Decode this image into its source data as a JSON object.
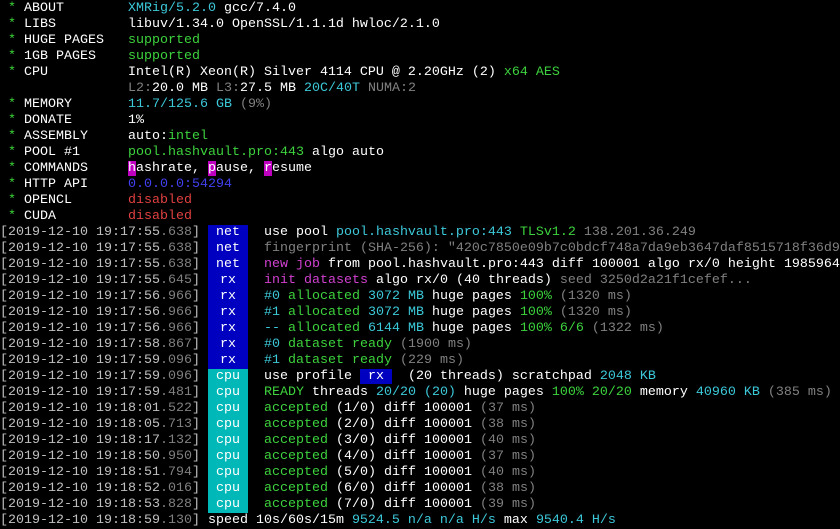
{
  "colors": {
    "tag_net": "#0000c0",
    "tag_cpu": "#00b8b8",
    "green": "#3dd23d",
    "cyan": "#3cc8d8",
    "magenta": "#d040d0",
    "red": "#e04040",
    "blue": "#4040f0",
    "grey": "#808080"
  },
  "header": [
    {
      "label": "ABOUT",
      "seg": [
        [
          "XMRig/5.2.0",
          "c"
        ],
        [
          " gcc/7.4.0",
          "W"
        ]
      ]
    },
    {
      "label": "LIBS",
      "seg": [
        [
          "libuv/1.34.0 OpenSSL/1.1.1d hwloc/2.1.0",
          "W"
        ]
      ]
    },
    {
      "label": "HUGE PAGES",
      "seg": [
        [
          "supported",
          "G"
        ]
      ]
    },
    {
      "label": "1GB PAGES",
      "seg": [
        [
          "supported",
          "G"
        ]
      ]
    },
    {
      "label": "CPU",
      "seg": [
        [
          "Intel(R) Xeon(R) Silver 4114 CPU @ 2.20GHz (2)",
          "W"
        ],
        [
          " x64 AES",
          "G"
        ]
      ]
    },
    {
      "label": "",
      "seg": [
        [
          "L2:",
          "g"
        ],
        [
          "20.0 MB ",
          "W"
        ],
        [
          "L3:",
          "g"
        ],
        [
          "27.5 MB ",
          "W"
        ],
        [
          "20C/40T ",
          "c"
        ],
        [
          "NUMA:2",
          "g"
        ]
      ]
    },
    {
      "label": "MEMORY",
      "seg": [
        [
          "11.7/125.6 GB",
          "c"
        ],
        [
          " (9%)",
          "g"
        ]
      ]
    },
    {
      "label": "DONATE",
      "seg": [
        [
          "1%",
          "W"
        ]
      ]
    },
    {
      "label": "ASSEMBLY",
      "seg": [
        [
          "auto:",
          "W"
        ],
        [
          "intel",
          "G"
        ]
      ]
    },
    {
      "label": "POOL #1",
      "seg": [
        [
          "pool.hashvault.pro:443",
          "G"
        ],
        [
          " algo auto",
          "W"
        ]
      ]
    },
    {
      "label": "COMMANDS",
      "seg": [
        [
          "h",
          "hl"
        ],
        [
          "ashrate, ",
          "W"
        ],
        [
          "p",
          "hl"
        ],
        [
          "ause, ",
          "W"
        ],
        [
          "r",
          "hl"
        ],
        [
          "esume",
          "W"
        ]
      ]
    },
    {
      "label": "HTTP API",
      "seg": [
        [
          "0.0.0.0:54294",
          "b"
        ]
      ]
    },
    {
      "label": "OPENCL",
      "seg": [
        [
          "disabled",
          "r"
        ]
      ]
    },
    {
      "label": "CUDA",
      "seg": [
        [
          "disabled",
          "r"
        ]
      ]
    }
  ],
  "log": [
    {
      "ts": "2019-12-10 19:17:55",
      "ms": ".638",
      "tag": "net",
      "seg": [
        [
          "use pool ",
          "W"
        ],
        [
          "pool.hashvault.pro:443 ",
          "c"
        ],
        [
          "TLSv1.2 ",
          "G"
        ],
        [
          "138.201.36.249",
          "g"
        ]
      ]
    },
    {
      "ts": "2019-12-10 19:17:55",
      "ms": ".638",
      "tag": "net",
      "seg": [
        [
          "fingerprint (SHA-256): \"420c7850e09b7c0bdcf748a7da9eb3647daf8515718f36d9",
          "g"
        ]
      ]
    },
    {
      "ts": "2019-12-10 19:17:55",
      "ms": ".638",
      "tag": "net",
      "seg": [
        [
          "new job",
          "m"
        ],
        [
          " from ",
          "W"
        ],
        [
          "pool.hashvault.pro:443",
          "W"
        ],
        [
          " diff ",
          "W"
        ],
        [
          "100001",
          "W"
        ],
        [
          " algo ",
          "W"
        ],
        [
          "rx/0",
          "W"
        ],
        [
          " height ",
          "W"
        ],
        [
          "1985964",
          "W"
        ]
      ]
    },
    {
      "ts": "2019-12-10 19:17:55",
      "ms": ".645",
      "tag": "rx",
      "seg": [
        [
          "init datasets",
          "m"
        ],
        [
          " algo ",
          "W"
        ],
        [
          "rx/0",
          "W"
        ],
        [
          " (40 threads)",
          "W"
        ],
        [
          " seed 3250d2a21f1cefef...",
          "g"
        ]
      ]
    },
    {
      "ts": "2019-12-10 19:17:56",
      "ms": ".966",
      "tag": "rx",
      "seg": [
        [
          "#0",
          "c"
        ],
        [
          " allocated ",
          "G"
        ],
        [
          "3072 MB",
          "c"
        ],
        [
          " huge pages ",
          "W"
        ],
        [
          "100%",
          "G"
        ],
        [
          " (1320 ms)",
          "g"
        ]
      ]
    },
    {
      "ts": "2019-12-10 19:17:56",
      "ms": ".966",
      "tag": "rx",
      "seg": [
        [
          "#1",
          "c"
        ],
        [
          " allocated ",
          "G"
        ],
        [
          "3072 MB",
          "c"
        ],
        [
          " huge pages ",
          "W"
        ],
        [
          "100%",
          "G"
        ],
        [
          " (1320 ms)",
          "g"
        ]
      ]
    },
    {
      "ts": "2019-12-10 19:17:56",
      "ms": ".966",
      "tag": "rx",
      "seg": [
        [
          "--",
          "c"
        ],
        [
          " allocated ",
          "G"
        ],
        [
          "6144 MB",
          "c"
        ],
        [
          " huge pages ",
          "W"
        ],
        [
          "100% 6/6",
          "G"
        ],
        [
          " (1322 ms)",
          "g"
        ]
      ]
    },
    {
      "ts": "2019-12-10 19:17:58",
      "ms": ".867",
      "tag": "rx",
      "seg": [
        [
          "#0",
          "c"
        ],
        [
          " dataset ready",
          "G"
        ],
        [
          " (1900 ms)",
          "g"
        ]
      ]
    },
    {
      "ts": "2019-12-10 19:17:59",
      "ms": ".096",
      "tag": "rx",
      "seg": [
        [
          "#1",
          "c"
        ],
        [
          " dataset ready",
          "G"
        ],
        [
          " (229 ms)",
          "g"
        ]
      ]
    },
    {
      "ts": "2019-12-10 19:17:59",
      "ms": ".096",
      "tag": "cpu",
      "seg": [
        [
          "use profile ",
          "W"
        ],
        [
          " rx ",
          "inv"
        ],
        [
          "  (20 threads)",
          "W"
        ],
        [
          " scratchpad ",
          "W"
        ],
        [
          "2048 KB",
          "c"
        ]
      ]
    },
    {
      "ts": "2019-12-10 19:17:59",
      "ms": ".481",
      "tag": "cpu",
      "seg": [
        [
          "READY",
          "G"
        ],
        [
          " threads ",
          "W"
        ],
        [
          "20/20 (20)",
          "c"
        ],
        [
          " huge pages ",
          "W"
        ],
        [
          "100% 20/20",
          "G"
        ],
        [
          " memory ",
          "W"
        ],
        [
          "40960 KB",
          "c"
        ],
        [
          " (385 ms)",
          "g"
        ]
      ]
    },
    {
      "ts": "2019-12-10 19:18:01",
      "ms": ".522",
      "tag": "cpu",
      "seg": [
        [
          "accepted",
          "G"
        ],
        [
          " (1/0) diff ",
          "W"
        ],
        [
          "100001",
          "W"
        ],
        [
          " (37 ms)",
          "g"
        ]
      ]
    },
    {
      "ts": "2019-12-10 19:18:05",
      "ms": ".713",
      "tag": "cpu",
      "seg": [
        [
          "accepted",
          "G"
        ],
        [
          " (2/0) diff ",
          "W"
        ],
        [
          "100001",
          "W"
        ],
        [
          " (38 ms)",
          "g"
        ]
      ]
    },
    {
      "ts": "2019-12-10 19:18:17",
      "ms": ".132",
      "tag": "cpu",
      "seg": [
        [
          "accepted",
          "G"
        ],
        [
          " (3/0) diff ",
          "W"
        ],
        [
          "100001",
          "W"
        ],
        [
          " (40 ms)",
          "g"
        ]
      ]
    },
    {
      "ts": "2019-12-10 19:18:50",
      "ms": ".950",
      "tag": "cpu",
      "seg": [
        [
          "accepted",
          "G"
        ],
        [
          " (4/0) diff ",
          "W"
        ],
        [
          "100001",
          "W"
        ],
        [
          " (37 ms)",
          "g"
        ]
      ]
    },
    {
      "ts": "2019-12-10 19:18:51",
      "ms": ".794",
      "tag": "cpu",
      "seg": [
        [
          "accepted",
          "G"
        ],
        [
          " (5/0) diff ",
          "W"
        ],
        [
          "100001",
          "W"
        ],
        [
          " (40 ms)",
          "g"
        ]
      ]
    },
    {
      "ts": "2019-12-10 19:18:52",
      "ms": ".016",
      "tag": "cpu",
      "seg": [
        [
          "accepted",
          "G"
        ],
        [
          " (6/0) diff ",
          "W"
        ],
        [
          "100001",
          "W"
        ],
        [
          " (38 ms)",
          "g"
        ]
      ]
    },
    {
      "ts": "2019-12-10 19:18:53",
      "ms": ".828",
      "tag": "cpu",
      "seg": [
        [
          "accepted",
          "G"
        ],
        [
          " (7/0) diff ",
          "W"
        ],
        [
          "100001",
          "W"
        ],
        [
          " (39 ms)",
          "g"
        ]
      ]
    },
    {
      "ts": "2019-12-10 19:18:59",
      "ms": ".130",
      "tag": "",
      "seg": [
        [
          "speed 10s/60s/15m ",
          "W"
        ],
        [
          "9524.5",
          "c"
        ],
        [
          " n/a n/a",
          "c"
        ],
        [
          " H/s",
          "c"
        ],
        [
          " max ",
          "W"
        ],
        [
          "9540.4 H/s",
          "c"
        ]
      ]
    }
  ]
}
